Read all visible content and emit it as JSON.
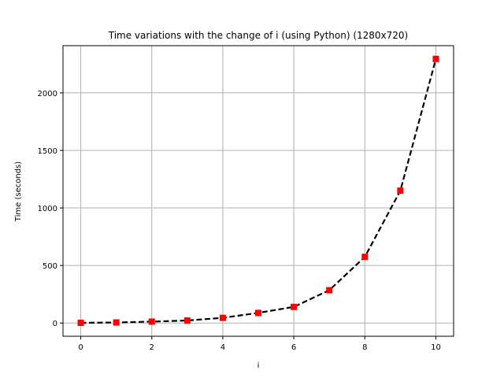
{
  "chart_data": {
    "type": "line",
    "title": "Time variations with the change of i (using Python) (1280x720)",
    "xlabel": "i",
    "ylabel": "Time (seconds)",
    "xlim": [
      -0.5,
      10.5
    ],
    "ylim": [
      -115,
      2410
    ],
    "xticks": [
      0,
      2,
      4,
      6,
      8,
      10
    ],
    "yticks": [
      0,
      500,
      1000,
      1500,
      2000
    ],
    "grid": true,
    "series": [
      {
        "line_color": "#000000",
        "line_style": "dashed",
        "marker": "square",
        "marker_color": "#ff0000",
        "x": [
          0,
          1,
          2,
          3,
          4,
          5,
          6,
          7,
          8,
          9,
          10
        ],
        "y": [
          2,
          5,
          12,
          22,
          45,
          88,
          140,
          285,
          575,
          1150,
          2295
        ]
      }
    ]
  }
}
